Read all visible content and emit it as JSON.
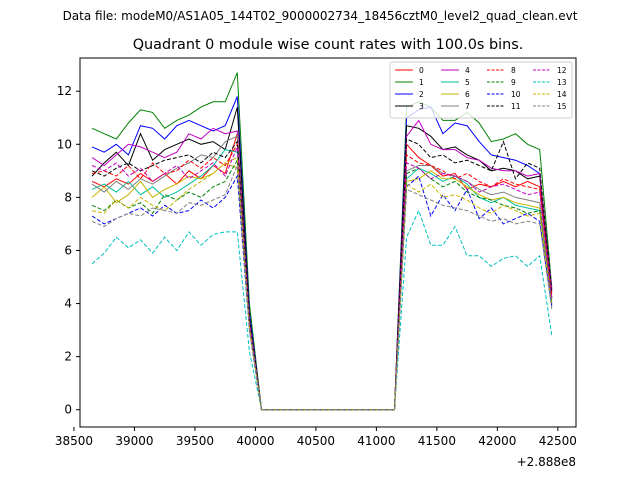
{
  "chart_data": {
    "type": "line",
    "suptitle": "Data file: modeM0/AS1A05_144T02_9000002734_18456cztM0_level2_quad_clean.evt",
    "title": "Quadrant 0 module wise count rates with 100.0s bins.",
    "xlabel": "",
    "ylabel": "",
    "x_offset_label": "+2.888e8",
    "xlim": [
      38550,
      42650
    ],
    "ylim": [
      -0.65,
      13.25
    ],
    "x_ticks": [
      38500,
      39000,
      39500,
      40000,
      40500,
      41000,
      41500,
      42000,
      42500
    ],
    "x_tick_labels": [
      "38500",
      "39000",
      "39500",
      "40000",
      "40500",
      "41000",
      "41500",
      "42000",
      "42500"
    ],
    "y_ticks": [
      0,
      2,
      4,
      6,
      8,
      10,
      12
    ],
    "y_tick_labels": [
      "0",
      "2",
      "4",
      "6",
      "8",
      "10",
      "12"
    ],
    "legend_location": "upper right",
    "legend_columns": 4,
    "x": [
      38650,
      38750,
      38850,
      38950,
      39050,
      39150,
      39250,
      39350,
      39450,
      39550,
      39650,
      39750,
      39850,
      39950,
      40050,
      40150,
      40250,
      40350,
      40450,
      40550,
      40650,
      40750,
      40850,
      40950,
      41050,
      41150,
      41250,
      41350,
      41450,
      41550,
      41650,
      41750,
      41850,
      41950,
      42050,
      42150,
      42250,
      42350,
      42450
    ],
    "series": [
      {
        "name": "0",
        "color": "#ff0000",
        "dash": "solid",
        "values": [
          8.6,
          8.4,
          8.7,
          8.5,
          8.9,
          8.6,
          8.9,
          8.5,
          9.0,
          8.7,
          9.2,
          8.9,
          10.4,
          3.2,
          0,
          0,
          0,
          0,
          0,
          0,
          0,
          0,
          0,
          0,
          0,
          0,
          10.0,
          9.5,
          9.2,
          8.8,
          8.9,
          8.3,
          8.5,
          8.4,
          8.6,
          8.4,
          8.6,
          8.4,
          4.4
        ]
      },
      {
        "name": "1",
        "color": "#008000",
        "dash": "solid",
        "values": [
          10.6,
          10.4,
          10.2,
          10.8,
          11.3,
          11.2,
          10.6,
          10.9,
          11.1,
          11.4,
          11.6,
          11.6,
          12.7,
          4.0,
          0,
          0,
          0,
          0,
          0,
          0,
          0,
          0,
          0,
          0,
          0,
          0,
          11.4,
          11.6,
          11.4,
          10.9,
          10.9,
          11.2,
          10.8,
          10.1,
          10.2,
          10.4,
          10.0,
          9.8,
          4.6
        ]
      },
      {
        "name": "2",
        "color": "#0000ff",
        "dash": "solid",
        "values": [
          9.9,
          9.7,
          10.0,
          9.6,
          10.7,
          10.6,
          10.2,
          10.7,
          10.9,
          10.7,
          10.5,
          10.7,
          11.8,
          3.7,
          0,
          0,
          0,
          0,
          0,
          0,
          0,
          0,
          0,
          0,
          0,
          0,
          11.0,
          11.3,
          11.4,
          10.4,
          10.8,
          10.7,
          10.1,
          9.6,
          9.5,
          9.4,
          9.2,
          8.9,
          4.5
        ]
      },
      {
        "name": "3",
        "color": "#000000",
        "dash": "solid",
        "values": [
          8.8,
          9.3,
          9.7,
          9.2,
          10.4,
          9.4,
          9.8,
          10.0,
          10.2,
          10.0,
          10.1,
          9.8,
          11.4,
          3.5,
          0,
          0,
          0,
          0,
          0,
          0,
          0,
          0,
          0,
          0,
          0,
          0,
          10.7,
          10.6,
          10.3,
          9.8,
          9.9,
          9.6,
          9.4,
          9.0,
          9.1,
          9.0,
          8.7,
          8.8,
          4.2
        ]
      },
      {
        "name": "4",
        "color": "#c000c0",
        "dash": "solid",
        "values": [
          9.5,
          9.2,
          9.6,
          10.0,
          9.9,
          9.7,
          9.5,
          9.7,
          10.4,
          10.2,
          10.6,
          10.4,
          10.5,
          3.4,
          0,
          0,
          0,
          0,
          0,
          0,
          0,
          0,
          0,
          0,
          0,
          0,
          10.3,
          10.9,
          10.0,
          9.8,
          9.8,
          9.5,
          9.4,
          9.1,
          9.0,
          9.0,
          8.8,
          8.9,
          4.5
        ]
      },
      {
        "name": "5",
        "color": "#00c0a0",
        "dash": "solid",
        "values": [
          8.3,
          8.5,
          8.2,
          8.6,
          8.1,
          8.4,
          8.0,
          8.2,
          8.5,
          8.8,
          9.2,
          9.8,
          9.7,
          3.3,
          0,
          0,
          0,
          0,
          0,
          0,
          0,
          0,
          0,
          0,
          0,
          0,
          8.7,
          9.1,
          8.9,
          8.6,
          8.8,
          8.5,
          8.0,
          7.8,
          8.0,
          7.7,
          7.6,
          7.5,
          4.1
        ]
      },
      {
        "name": "6",
        "color": "#c8b400",
        "dash": "solid",
        "values": [
          8.0,
          8.4,
          7.8,
          8.1,
          8.6,
          8.0,
          8.3,
          8.5,
          8.8,
          8.7,
          8.9,
          9.3,
          9.1,
          3.1,
          0,
          0,
          0,
          0,
          0,
          0,
          0,
          0,
          0,
          0,
          0,
          0,
          8.6,
          8.7,
          9.0,
          8.7,
          8.7,
          8.4,
          8.1,
          7.9,
          8.0,
          7.8,
          7.7,
          7.6,
          4.0
        ]
      },
      {
        "name": "7",
        "color": "#808080",
        "dash": "solid",
        "values": [
          8.5,
          8.2,
          8.6,
          8.3,
          8.7,
          8.5,
          8.8,
          9.1,
          9.3,
          9.6,
          9.5,
          10.1,
          10.3,
          3.4,
          0,
          0,
          0,
          0,
          0,
          0,
          0,
          0,
          0,
          0,
          0,
          0,
          9.0,
          9.2,
          9.2,
          8.9,
          8.8,
          8.6,
          8.3,
          8.1,
          8.2,
          8.0,
          7.9,
          7.8,
          4.2
        ]
      },
      {
        "name": "8",
        "color": "#ff0000",
        "dash": "dashed",
        "values": [
          8.9,
          9.0,
          8.8,
          9.2,
          8.7,
          9.3,
          8.9,
          9.0,
          9.4,
          9.1,
          9.5,
          9.2,
          10.0,
          3.3,
          0,
          0,
          0,
          0,
          0,
          0,
          0,
          0,
          0,
          0,
          0,
          0,
          9.6,
          9.3,
          9.2,
          9.0,
          8.7,
          8.9,
          8.6,
          8.4,
          8.7,
          8.5,
          8.4,
          8.3,
          4.3
        ]
      },
      {
        "name": "9",
        "color": "#008000",
        "dash": "dashed",
        "values": [
          7.7,
          7.5,
          7.9,
          7.6,
          7.8,
          7.4,
          8.1,
          7.9,
          8.2,
          8.0,
          8.4,
          8.6,
          9.4,
          3.1,
          0,
          0,
          0,
          0,
          0,
          0,
          0,
          0,
          0,
          0,
          0,
          0,
          8.9,
          9.1,
          8.7,
          8.4,
          8.6,
          8.2,
          8.0,
          7.9,
          7.7,
          7.6,
          7.4,
          7.5,
          4.0
        ]
      },
      {
        "name": "10",
        "color": "#0000ff",
        "dash": "dashed",
        "values": [
          7.3,
          7.0,
          7.2,
          7.4,
          7.6,
          7.3,
          7.7,
          7.4,
          7.5,
          7.9,
          7.6,
          8.0,
          8.8,
          3.0,
          0,
          0,
          0,
          0,
          0,
          0,
          0,
          0,
          0,
          0,
          0,
          0,
          8.4,
          8.8,
          7.3,
          8.1,
          7.5,
          8.3,
          7.2,
          7.6,
          7.0,
          7.2,
          7.4,
          7.1,
          3.9
        ]
      },
      {
        "name": "11",
        "color": "#000000",
        "dash": "dashed",
        "values": [
          9.0,
          8.8,
          9.1,
          9.3,
          9.0,
          9.2,
          9.4,
          9.5,
          9.6,
          9.3,
          9.7,
          9.5,
          10.1,
          3.5,
          0,
          0,
          0,
          0,
          0,
          0,
          0,
          0,
          0,
          0,
          0,
          0,
          10.2,
          10.0,
          9.5,
          9.6,
          9.3,
          9.4,
          9.2,
          9.0,
          10.1,
          8.7,
          9.3,
          9.1,
          4.4
        ]
      },
      {
        "name": "12",
        "color": "#c000c0",
        "dash": "dashed",
        "values": [
          9.2,
          9.0,
          9.3,
          8.8,
          9.1,
          8.6,
          8.9,
          9.2,
          8.7,
          9.0,
          9.3,
          8.8,
          9.9,
          3.3,
          0,
          0,
          0,
          0,
          0,
          0,
          0,
          0,
          0,
          0,
          0,
          0,
          9.3,
          9.1,
          8.7,
          8.9,
          8.8,
          8.6,
          8.2,
          8.4,
          8.5,
          8.3,
          8.1,
          8.2,
          4.2
        ]
      },
      {
        "name": "13",
        "color": "#00c0c0",
        "dash": "dashed",
        "values": [
          5.5,
          5.9,
          6.5,
          6.1,
          6.4,
          5.9,
          6.5,
          6.0,
          6.7,
          6.2,
          6.6,
          6.7,
          6.7,
          2.2,
          0,
          0,
          0,
          0,
          0,
          0,
          0,
          0,
          0,
          0,
          0,
          0,
          6.5,
          7.5,
          6.2,
          6.2,
          6.9,
          5.8,
          5.8,
          5.4,
          5.7,
          5.8,
          5.4,
          5.8,
          2.8
        ]
      },
      {
        "name": "14",
        "color": "#c8b400",
        "dash": "dashed",
        "values": [
          7.5,
          7.4,
          7.9,
          7.6,
          8.0,
          7.7,
          7.5,
          7.9,
          8.3,
          8.6,
          8.9,
          9.3,
          9.5,
          3.1,
          0,
          0,
          0,
          0,
          0,
          0,
          0,
          0,
          0,
          0,
          0,
          0,
          8.5,
          8.2,
          8.5,
          8.0,
          8.1,
          7.9,
          7.6,
          7.4,
          7.7,
          7.5,
          7.3,
          7.4,
          3.9
        ]
      },
      {
        "name": "15",
        "color": "#808080",
        "dash": "dashed",
        "values": [
          7.1,
          6.9,
          7.2,
          7.4,
          7.3,
          7.6,
          7.5,
          7.4,
          7.8,
          7.7,
          7.9,
          8.1,
          9.2,
          3.0,
          0,
          0,
          0,
          0,
          0,
          0,
          0,
          0,
          0,
          0,
          0,
          0,
          8.3,
          8.1,
          7.9,
          7.7,
          7.6,
          7.5,
          7.3,
          7.1,
          7.2,
          7.0,
          7.1,
          7.0,
          3.8
        ]
      }
    ]
  }
}
